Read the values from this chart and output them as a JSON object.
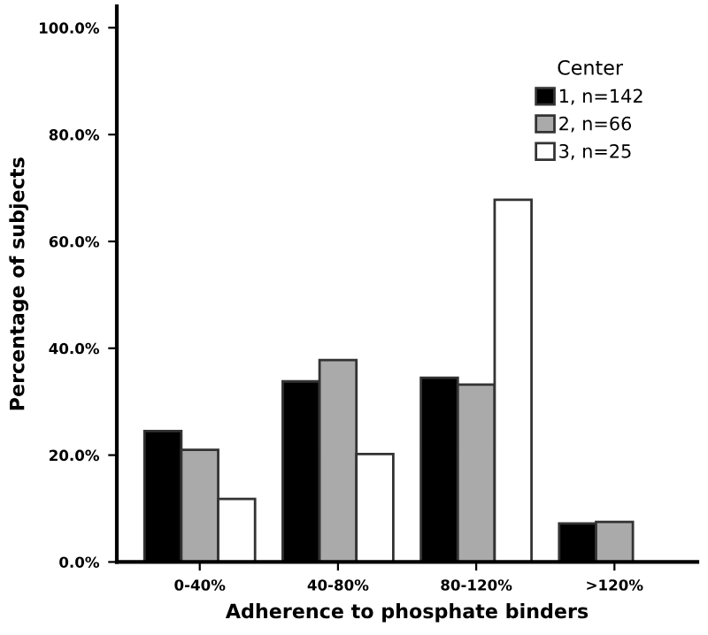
{
  "chart_data": {
    "type": "bar",
    "xlabel": "Adherence to phosphate binders",
    "ylabel": "Percentage of subjects",
    "legend_title": "Center",
    "legend": "top right",
    "grid": false,
    "categories": [
      "0-40%",
      "40-80%",
      "80-120%",
      ">120%"
    ],
    "series": [
      {
        "name": "1, n=142",
        "color": "#000000",
        "values": [
          24.5,
          33.8,
          34.5,
          7.2
        ]
      },
      {
        "name": "2, n=66",
        "color": "#aaaaaa",
        "values": [
          21.0,
          37.8,
          33.2,
          7.5
        ]
      },
      {
        "name": "3, n=25",
        "color": "#ffffff",
        "values": [
          11.8,
          20.2,
          67.8,
          null
        ]
      }
    ],
    "ylim": [
      0,
      104
    ],
    "yticks": [
      {
        "value": 0,
        "label": "0.0%"
      },
      {
        "value": 20,
        "label": "20.0%"
      },
      {
        "value": 40,
        "label": "40.0%"
      },
      {
        "value": 60,
        "label": "60.0%"
      },
      {
        "value": 80,
        "label": "80.0%"
      },
      {
        "value": 100,
        "label": "100.0%"
      }
    ]
  }
}
